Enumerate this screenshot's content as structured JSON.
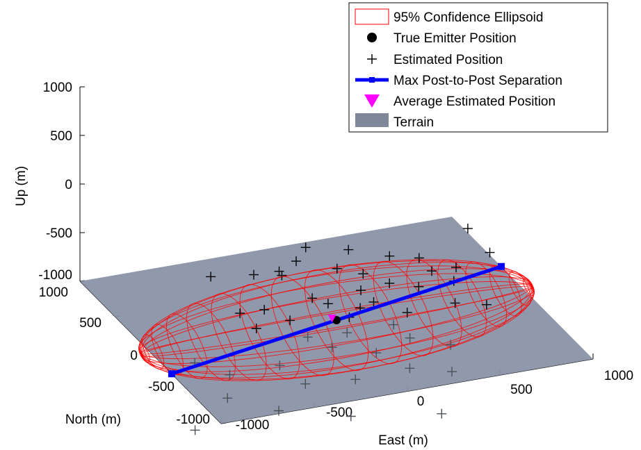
{
  "chart_data": {
    "type": "scatter3d",
    "axes": {
      "x": {
        "label": "East (m)",
        "ticks": [
          "-1000",
          "-500",
          "0",
          "500",
          "1000"
        ],
        "lim": [
          -1000,
          1000
        ]
      },
      "y": {
        "label": "North (m)",
        "ticks": [
          "-1000",
          "-500",
          "0",
          "500",
          "1000"
        ],
        "lim": [
          -1000,
          1000
        ]
      },
      "z": {
        "label": "Up (m)",
        "ticks": [
          "-1000",
          "-500",
          "0",
          "500",
          "1000"
        ],
        "lim": [
          -1000,
          1000
        ]
      }
    },
    "legend": {
      "placement": "top-right",
      "entries": [
        {
          "label": "95% Confidence Ellipsoid",
          "symbol": "ellipsoid",
          "color": "#ff0000"
        },
        {
          "label": "True Emitter Position",
          "symbol": "dot",
          "color": "#000000"
        },
        {
          "label": "Estimated Position",
          "symbol": "plus",
          "color": "#000000"
        },
        {
          "label": "Max Post-to-Post Separation",
          "symbol": "line",
          "color": "#0000ff"
        },
        {
          "label": "Average Estimated Position",
          "symbol": "triangle-down",
          "color": "#ff00ff"
        },
        {
          "label": "Terrain",
          "symbol": "patch",
          "color": "#8a94a6"
        }
      ]
    },
    "true_emitter": {
      "x": 0,
      "y": 0,
      "z": -400
    },
    "average_estimate": {
      "x": -20,
      "y": 10,
      "z": -380
    },
    "max_separation": {
      "from": {
        "x": -1000,
        "y": -300,
        "z": -400
      },
      "to": {
        "x": 1000,
        "y": 300,
        "z": -400
      }
    },
    "ellipsoid": {
      "center": {
        "x": 0,
        "y": 0,
        "z": -400
      },
      "semi_axes": {
        "x": 1050,
        "y": 450,
        "z": 400
      }
    },
    "terrain": {
      "z": -400,
      "x_range": [
        -1000,
        1000
      ],
      "y_range": [
        -1000,
        1000
      ]
    },
    "estimates": [
      {
        "x": -120,
        "y": 120,
        "z": 300
      },
      {
        "x": -160,
        "y": 150,
        "z": 150
      },
      {
        "x": 110,
        "y": 120,
        "z": 200
      },
      {
        "x": -600,
        "y": 200,
        "z": 100
      },
      {
        "x": -180,
        "y": 300,
        "z": -100
      },
      {
        "x": -240,
        "y": 180,
        "z": 50
      },
      {
        "x": 60,
        "y": 150,
        "z": 0
      },
      {
        "x": 380,
        "y": 250,
        "z": -50
      },
      {
        "x": 820,
        "y": 300,
        "z": 50
      },
      {
        "x": 900,
        "y": 200,
        "z": -150
      },
      {
        "x": 520,
        "y": 200,
        "z": -80
      },
      {
        "x": 650,
        "y": 50,
        "z": -250
      },
      {
        "x": -350,
        "y": 100,
        "z": -250
      },
      {
        "x": -100,
        "y": 80,
        "z": -200
      },
      {
        "x": 150,
        "y": 50,
        "z": -180
      },
      {
        "x": 300,
        "y": 40,
        "z": -150
      },
      {
        "x": 450,
        "y": 20,
        "z": -220
      },
      {
        "x": 200,
        "y": 0,
        "z": -280
      },
      {
        "x": -250,
        "y": 0,
        "z": -320
      },
      {
        "x": -450,
        "y": -50,
        "z": -300
      },
      {
        "x": 50,
        "y": -50,
        "z": -350
      },
      {
        "x": 350,
        "y": -80,
        "z": -380
      },
      {
        "x": 600,
        "y": -100,
        "z": -350
      },
      {
        "x": 750,
        "y": -150,
        "z": -380
      },
      {
        "x": -800,
        "y": -100,
        "z": -500
      },
      {
        "x": -650,
        "y": -200,
        "z": -600
      },
      {
        "x": -400,
        "y": -250,
        "z": -550
      },
      {
        "x": -100,
        "y": -200,
        "z": -500
      },
      {
        "x": 100,
        "y": -300,
        "z": -550
      },
      {
        "x": 300,
        "y": -250,
        "z": -500
      },
      {
        "x": 500,
        "y": -300,
        "z": -600
      },
      {
        "x": -300,
        "y": -350,
        "z": -700
      },
      {
        "x": -50,
        "y": -400,
        "z": -700
      },
      {
        "x": 250,
        "y": -380,
        "z": -700
      },
      {
        "x": 450,
        "y": -450,
        "z": -750
      },
      {
        "x": -700,
        "y": -300,
        "z": -750
      },
      {
        "x": -950,
        "y": -500,
        "z": -850
      },
      {
        "x": -150,
        "y": -600,
        "z": -900
      },
      {
        "x": 300,
        "y": -700,
        "z": -950
      },
      {
        "x": -500,
        "y": -500,
        "z": -800
      },
      {
        "x": 0,
        "y": -150,
        "z": -420
      },
      {
        "x": 120,
        "y": -20,
        "z": -300
      },
      {
        "x": -30,
        "y": 40,
        "z": -250
      },
      {
        "x": 550,
        "y": 100,
        "z": -150
      },
      {
        "x": -500,
        "y": 50,
        "z": -200
      },
      {
        "x": 700,
        "y": 150,
        "z": -200
      },
      {
        "x": 200,
        "y": 150,
        "z": -100
      },
      {
        "x": -350,
        "y": 250,
        "z": 0
      },
      {
        "x": 250,
        "y": -150,
        "z": -420
      },
      {
        "x": -200,
        "y": -120,
        "z": -420
      }
    ]
  }
}
